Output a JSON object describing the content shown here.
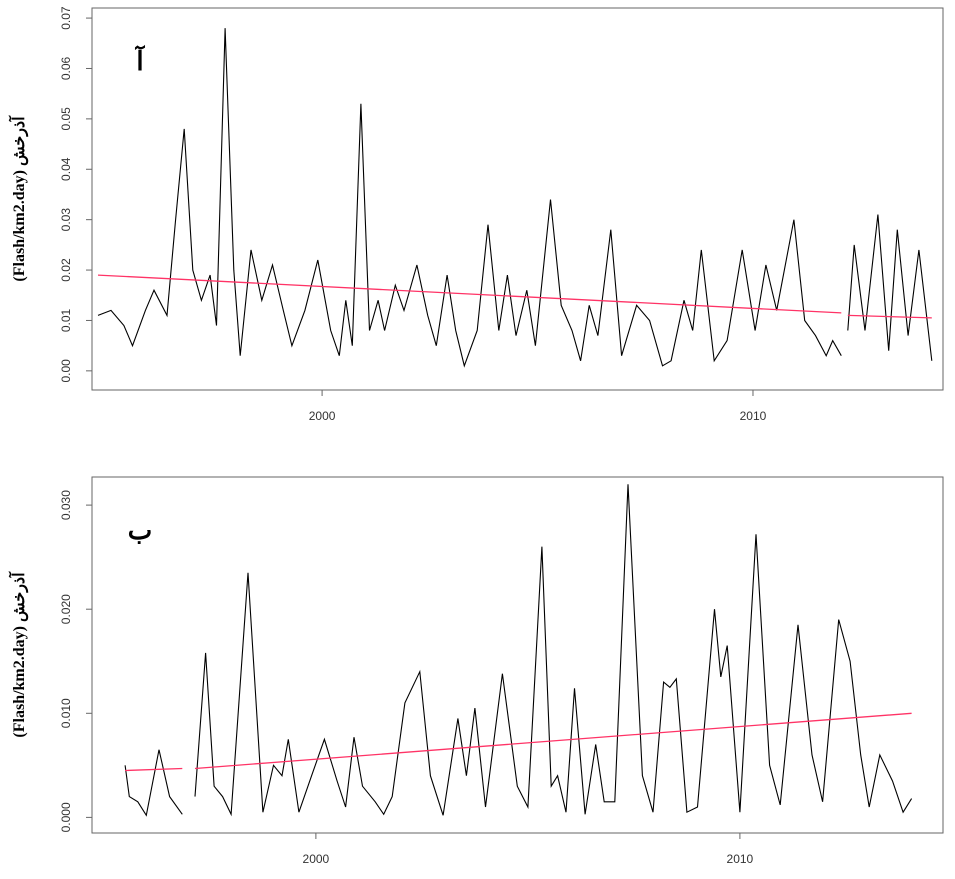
{
  "chart_data": [
    {
      "type": "line",
      "ylabel": "(Flash/km2.day) آذرخش",
      "annotation": "آ",
      "xlim": [
        1994.66,
        2014.41
      ],
      "ylim": [
        -0.0038,
        0.072
      ],
      "xticks": [
        2000,
        2010
      ],
      "yticks": [
        {
          "value": 0,
          "label": "0.00"
        },
        {
          "value": 0.01,
          "label": "0.01"
        },
        {
          "value": 0.02,
          "label": "0.02"
        },
        {
          "value": 0.03,
          "label": "0.03"
        },
        {
          "value": 0.04,
          "label": "0.04"
        },
        {
          "value": 0.05,
          "label": "0.05"
        },
        {
          "value": 0.06,
          "label": "0.06"
        },
        {
          "value": 0.07,
          "label": "0.07"
        }
      ],
      "series": [
        {
          "color": "#000000",
          "x": [
            1994.8,
            1995.1,
            1995.4,
            1995.6,
            1995.9,
            1996.1,
            1996.4,
            1996.6,
            1996.8,
            1997.0,
            1997.2,
            1997.4,
            1997.55,
            1997.75,
            1997.95,
            1998.1,
            1998.35,
            1998.6,
            1998.85,
            1999.1,
            1999.3,
            1999.6,
            1999.9,
            2000.2,
            2000.4,
            2000.55,
            2000.7,
            2000.9,
            2001.1,
            2001.3,
            2001.45,
            2001.7,
            2001.9,
            2002.2,
            2002.45,
            2002.65,
            2002.9,
            2003.1,
            2003.3,
            2003.6,
            2003.85,
            2004.1,
            2004.3,
            2004.5,
            2004.75,
            2004.95,
            2005.3,
            2005.55,
            2005.8,
            2006.0,
            2006.2,
            2006.4,
            2006.7,
            2006.95,
            2007.3,
            2007.6,
            2007.9,
            2008.1,
            2008.4,
            2008.6,
            2008.8,
            2009.1,
            2009.4,
            2009.75,
            2010.05,
            2010.3,
            2010.55,
            2010.95,
            2011.2,
            2011.45,
            2011.7,
            2011.85,
            2012.05,
            2012.12,
            2012.2,
            2012.35,
            2012.6,
            2012.9,
            2013.15,
            2013.35,
            2013.6,
            2013.85,
            2014.15
          ],
          "values": [
            0.011,
            0.012,
            0.009,
            0.005,
            0.012,
            0.016,
            0.011,
            0.03,
            0.048,
            0.02,
            0.014,
            0.019,
            0.009,
            0.068,
            0.02,
            0.003,
            0.024,
            0.014,
            0.021,
            0.012,
            0.005,
            0.012,
            0.022,
            0.008,
            0.003,
            0.014,
            0.005,
            0.053,
            0.008,
            0.014,
            0.008,
            0.017,
            0.012,
            0.021,
            0.011,
            0.005,
            0.019,
            0.008,
            0.001,
            0.008,
            0.029,
            0.008,
            0.019,
            0.007,
            0.016,
            0.005,
            0.034,
            0.013,
            0.008,
            0.002,
            0.013,
            0.007,
            0.028,
            0.003,
            0.013,
            0.01,
            0.001,
            0.002,
            0.014,
            0.008,
            0.024,
            0.002,
            0.006,
            0.024,
            0.008,
            0.021,
            0.012,
            0.03,
            0.01,
            0.007,
            0.003,
            0.006,
            0.003,
            null,
            0.008,
            0.025,
            0.008,
            0.031,
            0.004,
            0.028,
            0.007,
            0.024,
            0.002
          ]
        },
        {
          "color": "#ff3366",
          "x": [
            1994.8,
            2012.05,
            2012.12,
            2012.2,
            2014.15
          ],
          "values": [
            0.019,
            0.0115,
            null,
            0.011,
            0.0105
          ]
        }
      ]
    },
    {
      "type": "line",
      "ylabel": "(Flash/km2.day) آذرخش",
      "annotation": "ب",
      "xlim": [
        1994.72,
        2014.79
      ],
      "ylim": [
        -0.0015,
        0.0327
      ],
      "xticks": [
        2000,
        2010
      ],
      "yticks": [
        {
          "value": 0,
          "label": "0.000"
        },
        {
          "value": 0.01,
          "label": "0.010"
        },
        {
          "value": 0.02,
          "label": "0.020"
        },
        {
          "value": 0.03,
          "label": "0.030"
        }
      ],
      "series": [
        {
          "color": "#000000",
          "x": [
            1995.5,
            1995.6,
            1995.8,
            1996.0,
            1996.3,
            1996.55,
            1996.85,
            1997.0,
            1997.15,
            1997.4,
            1997.6,
            1997.8,
            1998.0,
            1998.4,
            1998.75,
            1999.0,
            1999.2,
            1999.35,
            1999.6,
            1999.9,
            2000.2,
            2000.5,
            2000.7,
            2000.9,
            2001.1,
            2001.4,
            2001.6,
            2001.8,
            2002.1,
            2002.45,
            2002.7,
            2003.0,
            2003.35,
            2003.55,
            2003.75,
            2004.0,
            2004.4,
            2004.75,
            2005.0,
            2005.33,
            2005.55,
            2005.7,
            2005.9,
            2006.1,
            2006.35,
            2006.6,
            2006.8,
            2007.05,
            2007.36,
            2007.7,
            2007.95,
            2008.2,
            2008.35,
            2008.5,
            2008.75,
            2009.0,
            2009.4,
            2009.55,
            2009.7,
            2010.0,
            2010.38,
            2010.7,
            2010.95,
            2011.37,
            2011.7,
            2011.95,
            2012.33,
            2012.6,
            2012.85,
            2013.05,
            2013.3,
            2013.6,
            2013.85,
            2014.05
          ],
          "values": [
            0.005,
            0.002,
            0.0015,
            0.0002,
            0.0065,
            0.002,
            0.0003,
            null,
            0.002,
            0.0158,
            0.003,
            0.002,
            0.0003,
            0.0235,
            0.0005,
            0.005,
            0.004,
            0.0075,
            0.0005,
            0.004,
            0.0075,
            0.0035,
            0.001,
            0.0077,
            0.003,
            0.0015,
            0.0003,
            0.002,
            0.011,
            0.014,
            0.004,
            0.0002,
            0.0095,
            0.004,
            0.0105,
            0.001,
            0.0138,
            0.003,
            0.001,
            0.026,
            0.003,
            0.004,
            0.0005,
            0.0124,
            0.0003,
            0.007,
            0.0015,
            0.0015,
            0.032,
            0.004,
            0.0005,
            0.013,
            0.0125,
            0.0133,
            0.0005,
            0.001,
            0.02,
            0.0135,
            0.0165,
            0.0005,
            0.0272,
            0.005,
            0.0012,
            0.0185,
            0.006,
            0.0015,
            0.019,
            0.015,
            0.006,
            0.001,
            0.006,
            0.0035,
            0.0005,
            0.0018
          ]
        },
        {
          "color": "#ff3366",
          "x": [
            1995.5,
            1996.85,
            1997.0,
            1997.15,
            2014.05
          ],
          "values": [
            0.0045,
            0.0047,
            null,
            0.0047,
            0.01
          ]
        }
      ]
    }
  ]
}
